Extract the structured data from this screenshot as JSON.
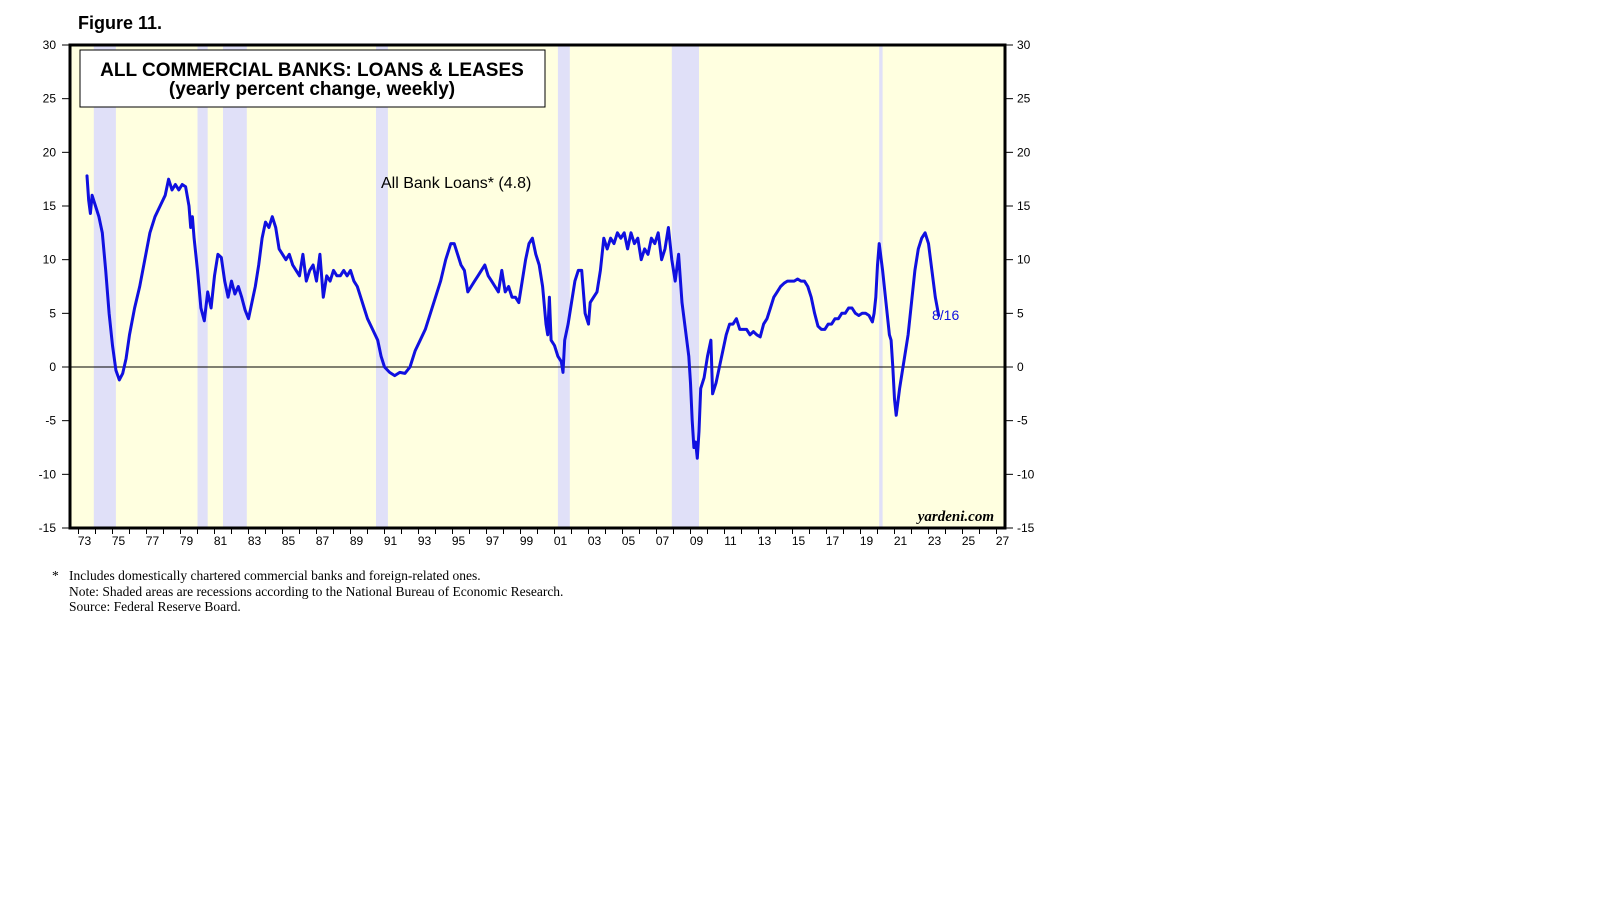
{
  "figure_label": "Figure 11.",
  "chart_data": {
    "type": "line",
    "title": "ALL COMMERCIAL BANKS: LOANS & LEASES",
    "subtitle": "(yearly percent change, weekly)",
    "series_label": "All Bank Loans* (4.8)",
    "end_label": "8/16",
    "watermark": "yardeni.com",
    "ylim": [
      -15,
      30
    ],
    "xlim": [
      1972.5,
      2027.5
    ],
    "y_ticks": [
      30,
      25,
      20,
      15,
      10,
      5,
      0,
      -5,
      -10,
      -15
    ],
    "y_tick_labels": [
      "30",
      "25",
      "20",
      "15",
      "10",
      "5",
      "0",
      "-5",
      "-10",
      "-15"
    ],
    "x_tick_labels": [
      "73",
      "75",
      "77",
      "79",
      "81",
      "83",
      "85",
      "87",
      "89",
      "91",
      "93",
      "95",
      "97",
      "99",
      "01",
      "03",
      "05",
      "07",
      "09",
      "11",
      "13",
      "15",
      "17",
      "19",
      "21",
      "23",
      "25",
      "27"
    ],
    "x_tick_years": [
      1973,
      1975,
      1977,
      1979,
      1981,
      1983,
      1985,
      1987,
      1989,
      1991,
      1993,
      1995,
      1997,
      1999,
      2001,
      2003,
      2005,
      2007,
      2009,
      2011,
      2013,
      2015,
      2017,
      2019,
      2021,
      2023,
      2025,
      2027
    ],
    "recessions": [
      [
        1973.9,
        1975.2
      ],
      [
        1980.0,
        1980.6
      ],
      [
        1981.5,
        1982.9
      ],
      [
        1990.5,
        1991.2
      ],
      [
        2001.2,
        2001.9
      ],
      [
        2007.9,
        2009.5
      ],
      [
        2020.1,
        2020.3
      ]
    ],
    "colors": {
      "line": "#1010e0",
      "background": "#ffffe0",
      "recession": "#e0e0f8",
      "end_label": "#1010e0"
    },
    "series": [
      {
        "name": "All Bank Loans",
        "points": [
          [
            1973.5,
            17.8
          ],
          [
            1973.6,
            15.5
          ],
          [
            1973.7,
            14.3
          ],
          [
            1973.8,
            16.0
          ],
          [
            1974.0,
            15.0
          ],
          [
            1974.2,
            14.0
          ],
          [
            1974.4,
            12.5
          ],
          [
            1974.6,
            9.0
          ],
          [
            1974.8,
            5.0
          ],
          [
            1975.0,
            2.0
          ],
          [
            1975.2,
            -0.3
          ],
          [
            1975.4,
            -1.2
          ],
          [
            1975.6,
            -0.6
          ],
          [
            1975.8,
            0.8
          ],
          [
            1976.0,
            3.0
          ],
          [
            1976.3,
            5.5
          ],
          [
            1976.6,
            7.5
          ],
          [
            1976.9,
            10.0
          ],
          [
            1977.2,
            12.5
          ],
          [
            1977.5,
            14.0
          ],
          [
            1977.8,
            15.0
          ],
          [
            1978.1,
            16.0
          ],
          [
            1978.3,
            17.5
          ],
          [
            1978.5,
            16.5
          ],
          [
            1978.7,
            17.0
          ],
          [
            1978.9,
            16.5
          ],
          [
            1979.1,
            17.0
          ],
          [
            1979.3,
            16.8
          ],
          [
            1979.5,
            15.0
          ],
          [
            1979.6,
            13.0
          ],
          [
            1979.7,
            14.0
          ],
          [
            1979.8,
            12.0
          ],
          [
            1980.0,
            9.0
          ],
          [
            1980.2,
            5.5
          ],
          [
            1980.4,
            4.3
          ],
          [
            1980.6,
            7.0
          ],
          [
            1980.8,
            5.5
          ],
          [
            1981.0,
            8.5
          ],
          [
            1981.2,
            10.5
          ],
          [
            1981.4,
            10.2
          ],
          [
            1981.6,
            8.0
          ],
          [
            1981.8,
            6.5
          ],
          [
            1982.0,
            8.0
          ],
          [
            1982.2,
            6.8
          ],
          [
            1982.4,
            7.5
          ],
          [
            1982.6,
            6.5
          ],
          [
            1982.8,
            5.3
          ],
          [
            1983.0,
            4.5
          ],
          [
            1983.2,
            6.0
          ],
          [
            1983.4,
            7.5
          ],
          [
            1983.6,
            9.5
          ],
          [
            1983.8,
            12.0
          ],
          [
            1984.0,
            13.5
          ],
          [
            1984.2,
            13.0
          ],
          [
            1984.4,
            14.0
          ],
          [
            1984.6,
            13.0
          ],
          [
            1984.8,
            11.0
          ],
          [
            1985.0,
            10.5
          ],
          [
            1985.2,
            10.0
          ],
          [
            1985.4,
            10.5
          ],
          [
            1985.6,
            9.5
          ],
          [
            1985.8,
            9.0
          ],
          [
            1986.0,
            8.5
          ],
          [
            1986.2,
            10.5
          ],
          [
            1986.4,
            8.0
          ],
          [
            1986.6,
            9.0
          ],
          [
            1986.8,
            9.5
          ],
          [
            1987.0,
            8.0
          ],
          [
            1987.2,
            10.5
          ],
          [
            1987.4,
            6.5
          ],
          [
            1987.6,
            8.5
          ],
          [
            1987.8,
            8.0
          ],
          [
            1988.0,
            9.0
          ],
          [
            1988.2,
            8.5
          ],
          [
            1988.4,
            8.5
          ],
          [
            1988.6,
            9.0
          ],
          [
            1988.8,
            8.5
          ],
          [
            1989.0,
            9.0
          ],
          [
            1989.2,
            8.0
          ],
          [
            1989.4,
            7.5
          ],
          [
            1989.6,
            6.5
          ],
          [
            1989.8,
            5.5
          ],
          [
            1990.0,
            4.5
          ],
          [
            1990.3,
            3.5
          ],
          [
            1990.6,
            2.5
          ],
          [
            1990.8,
            1.0
          ],
          [
            1991.0,
            0.0
          ],
          [
            1991.3,
            -0.5
          ],
          [
            1991.6,
            -0.8
          ],
          [
            1991.9,
            -0.5
          ],
          [
            1992.2,
            -0.6
          ],
          [
            1992.5,
            0.0
          ],
          [
            1992.8,
            1.5
          ],
          [
            1993.1,
            2.5
          ],
          [
            1993.4,
            3.5
          ],
          [
            1993.7,
            5.0
          ],
          [
            1994.0,
            6.5
          ],
          [
            1994.3,
            8.0
          ],
          [
            1994.6,
            10.0
          ],
          [
            1994.9,
            11.5
          ],
          [
            1995.1,
            11.5
          ],
          [
            1995.3,
            10.5
          ],
          [
            1995.5,
            9.5
          ],
          [
            1995.7,
            9.0
          ],
          [
            1995.9,
            7.0
          ],
          [
            1996.1,
            7.5
          ],
          [
            1996.3,
            8.0
          ],
          [
            1996.5,
            8.5
          ],
          [
            1996.7,
            9.0
          ],
          [
            1996.9,
            9.5
          ],
          [
            1997.1,
            8.5
          ],
          [
            1997.3,
            8.0
          ],
          [
            1997.5,
            7.5
          ],
          [
            1997.7,
            7.0
          ],
          [
            1997.9,
            9.0
          ],
          [
            1998.1,
            7.0
          ],
          [
            1998.3,
            7.5
          ],
          [
            1998.5,
            6.5
          ],
          [
            1998.7,
            6.5
          ],
          [
            1998.9,
            6.0
          ],
          [
            1999.1,
            8.0
          ],
          [
            1999.3,
            10.0
          ],
          [
            1999.5,
            11.5
          ],
          [
            1999.7,
            12.0
          ],
          [
            1999.9,
            10.5
          ],
          [
            2000.1,
            9.5
          ],
          [
            2000.3,
            7.5
          ],
          [
            2000.5,
            4.0
          ],
          [
            2000.6,
            3.0
          ],
          [
            2000.7,
            6.5
          ],
          [
            2000.8,
            2.5
          ],
          [
            2001.0,
            2.0
          ],
          [
            2001.2,
            1.0
          ],
          [
            2001.4,
            0.5
          ],
          [
            2001.5,
            -0.5
          ],
          [
            2001.6,
            2.5
          ],
          [
            2001.8,
            4.0
          ],
          [
            2002.0,
            6.0
          ],
          [
            2002.2,
            8.0
          ],
          [
            2002.4,
            9.0
          ],
          [
            2002.6,
            9.0
          ],
          [
            2002.8,
            5.0
          ],
          [
            2003.0,
            4.0
          ],
          [
            2003.1,
            6.0
          ],
          [
            2003.3,
            6.5
          ],
          [
            2003.5,
            7.0
          ],
          [
            2003.7,
            9.0
          ],
          [
            2003.9,
            12.0
          ],
          [
            2004.1,
            11.0
          ],
          [
            2004.3,
            12.0
          ],
          [
            2004.5,
            11.5
          ],
          [
            2004.7,
            12.5
          ],
          [
            2004.9,
            12.0
          ],
          [
            2005.1,
            12.5
          ],
          [
            2005.3,
            11.0
          ],
          [
            2005.5,
            12.5
          ],
          [
            2005.7,
            11.5
          ],
          [
            2005.9,
            12.0
          ],
          [
            2006.1,
            10.0
          ],
          [
            2006.3,
            11.0
          ],
          [
            2006.5,
            10.5
          ],
          [
            2006.7,
            12.0
          ],
          [
            2006.9,
            11.5
          ],
          [
            2007.1,
            12.5
          ],
          [
            2007.3,
            10.0
          ],
          [
            2007.5,
            11.0
          ],
          [
            2007.7,
            13.0
          ],
          [
            2007.9,
            10.0
          ],
          [
            2008.1,
            8.0
          ],
          [
            2008.3,
            10.5
          ],
          [
            2008.5,
            6.0
          ],
          [
            2008.7,
            3.5
          ],
          [
            2008.9,
            1.0
          ],
          [
            2009.0,
            -1.5
          ],
          [
            2009.1,
            -5.0
          ],
          [
            2009.2,
            -7.5
          ],
          [
            2009.3,
            -7.0
          ],
          [
            2009.4,
            -8.5
          ],
          [
            2009.5,
            -6.0
          ],
          [
            2009.6,
            -2.0
          ],
          [
            2009.8,
            -1.0
          ],
          [
            2010.0,
            1.0
          ],
          [
            2010.2,
            2.5
          ],
          [
            2010.3,
            -2.5
          ],
          [
            2010.5,
            -1.5
          ],
          [
            2010.7,
            0.0
          ],
          [
            2010.9,
            1.5
          ],
          [
            2011.1,
            3.0
          ],
          [
            2011.3,
            4.0
          ],
          [
            2011.5,
            4.0
          ],
          [
            2011.7,
            4.5
          ],
          [
            2011.9,
            3.5
          ],
          [
            2012.1,
            3.5
          ],
          [
            2012.3,
            3.5
          ],
          [
            2012.5,
            3.0
          ],
          [
            2012.7,
            3.3
          ],
          [
            2012.9,
            3.0
          ],
          [
            2013.1,
            2.8
          ],
          [
            2013.3,
            4.0
          ],
          [
            2013.5,
            4.5
          ],
          [
            2013.7,
            5.5
          ],
          [
            2013.9,
            6.5
          ],
          [
            2014.1,
            7.0
          ],
          [
            2014.3,
            7.5
          ],
          [
            2014.5,
            7.8
          ],
          [
            2014.7,
            8.0
          ],
          [
            2014.9,
            8.0
          ],
          [
            2015.1,
            8.0
          ],
          [
            2015.3,
            8.2
          ],
          [
            2015.5,
            8.0
          ],
          [
            2015.7,
            8.0
          ],
          [
            2015.9,
            7.5
          ],
          [
            2016.1,
            6.5
          ],
          [
            2016.3,
            5.0
          ],
          [
            2016.5,
            3.8
          ],
          [
            2016.7,
            3.5
          ],
          [
            2016.9,
            3.5
          ],
          [
            2017.1,
            4.0
          ],
          [
            2017.3,
            4.0
          ],
          [
            2017.5,
            4.5
          ],
          [
            2017.7,
            4.5
          ],
          [
            2017.9,
            5.0
          ],
          [
            2018.1,
            5.0
          ],
          [
            2018.3,
            5.5
          ],
          [
            2018.5,
            5.5
          ],
          [
            2018.7,
            5.0
          ],
          [
            2018.9,
            4.8
          ],
          [
            2019.1,
            5.0
          ],
          [
            2019.3,
            5.0
          ],
          [
            2019.5,
            4.8
          ],
          [
            2019.7,
            4.2
          ],
          [
            2019.8,
            5.0
          ],
          [
            2019.9,
            6.5
          ],
          [
            2020.0,
            9.5
          ],
          [
            2020.1,
            11.5
          ],
          [
            2020.3,
            9.0
          ],
          [
            2020.5,
            6.0
          ],
          [
            2020.7,
            3.0
          ],
          [
            2020.8,
            2.5
          ],
          [
            2020.9,
            0.0
          ],
          [
            2021.0,
            -3.0
          ],
          [
            2021.1,
            -4.5
          ],
          [
            2021.3,
            -2.0
          ],
          [
            2021.5,
            0.0
          ],
          [
            2021.8,
            3.0
          ],
          [
            2022.0,
            6.0
          ],
          [
            2022.2,
            9.0
          ],
          [
            2022.4,
            11.0
          ],
          [
            2022.6,
            12.0
          ],
          [
            2022.8,
            12.5
          ],
          [
            2023.0,
            11.5
          ],
          [
            2023.2,
            9.0
          ],
          [
            2023.4,
            6.5
          ],
          [
            2023.6,
            4.8
          ]
        ]
      }
    ]
  },
  "footnotes": {
    "star": "*",
    "line1": "Includes domestically chartered commercial banks and foreign-related ones.",
    "line2": "Note: Shaded areas are recessions according to the National Bureau of Economic Research.",
    "line3": "Source: Federal Reserve Board."
  }
}
